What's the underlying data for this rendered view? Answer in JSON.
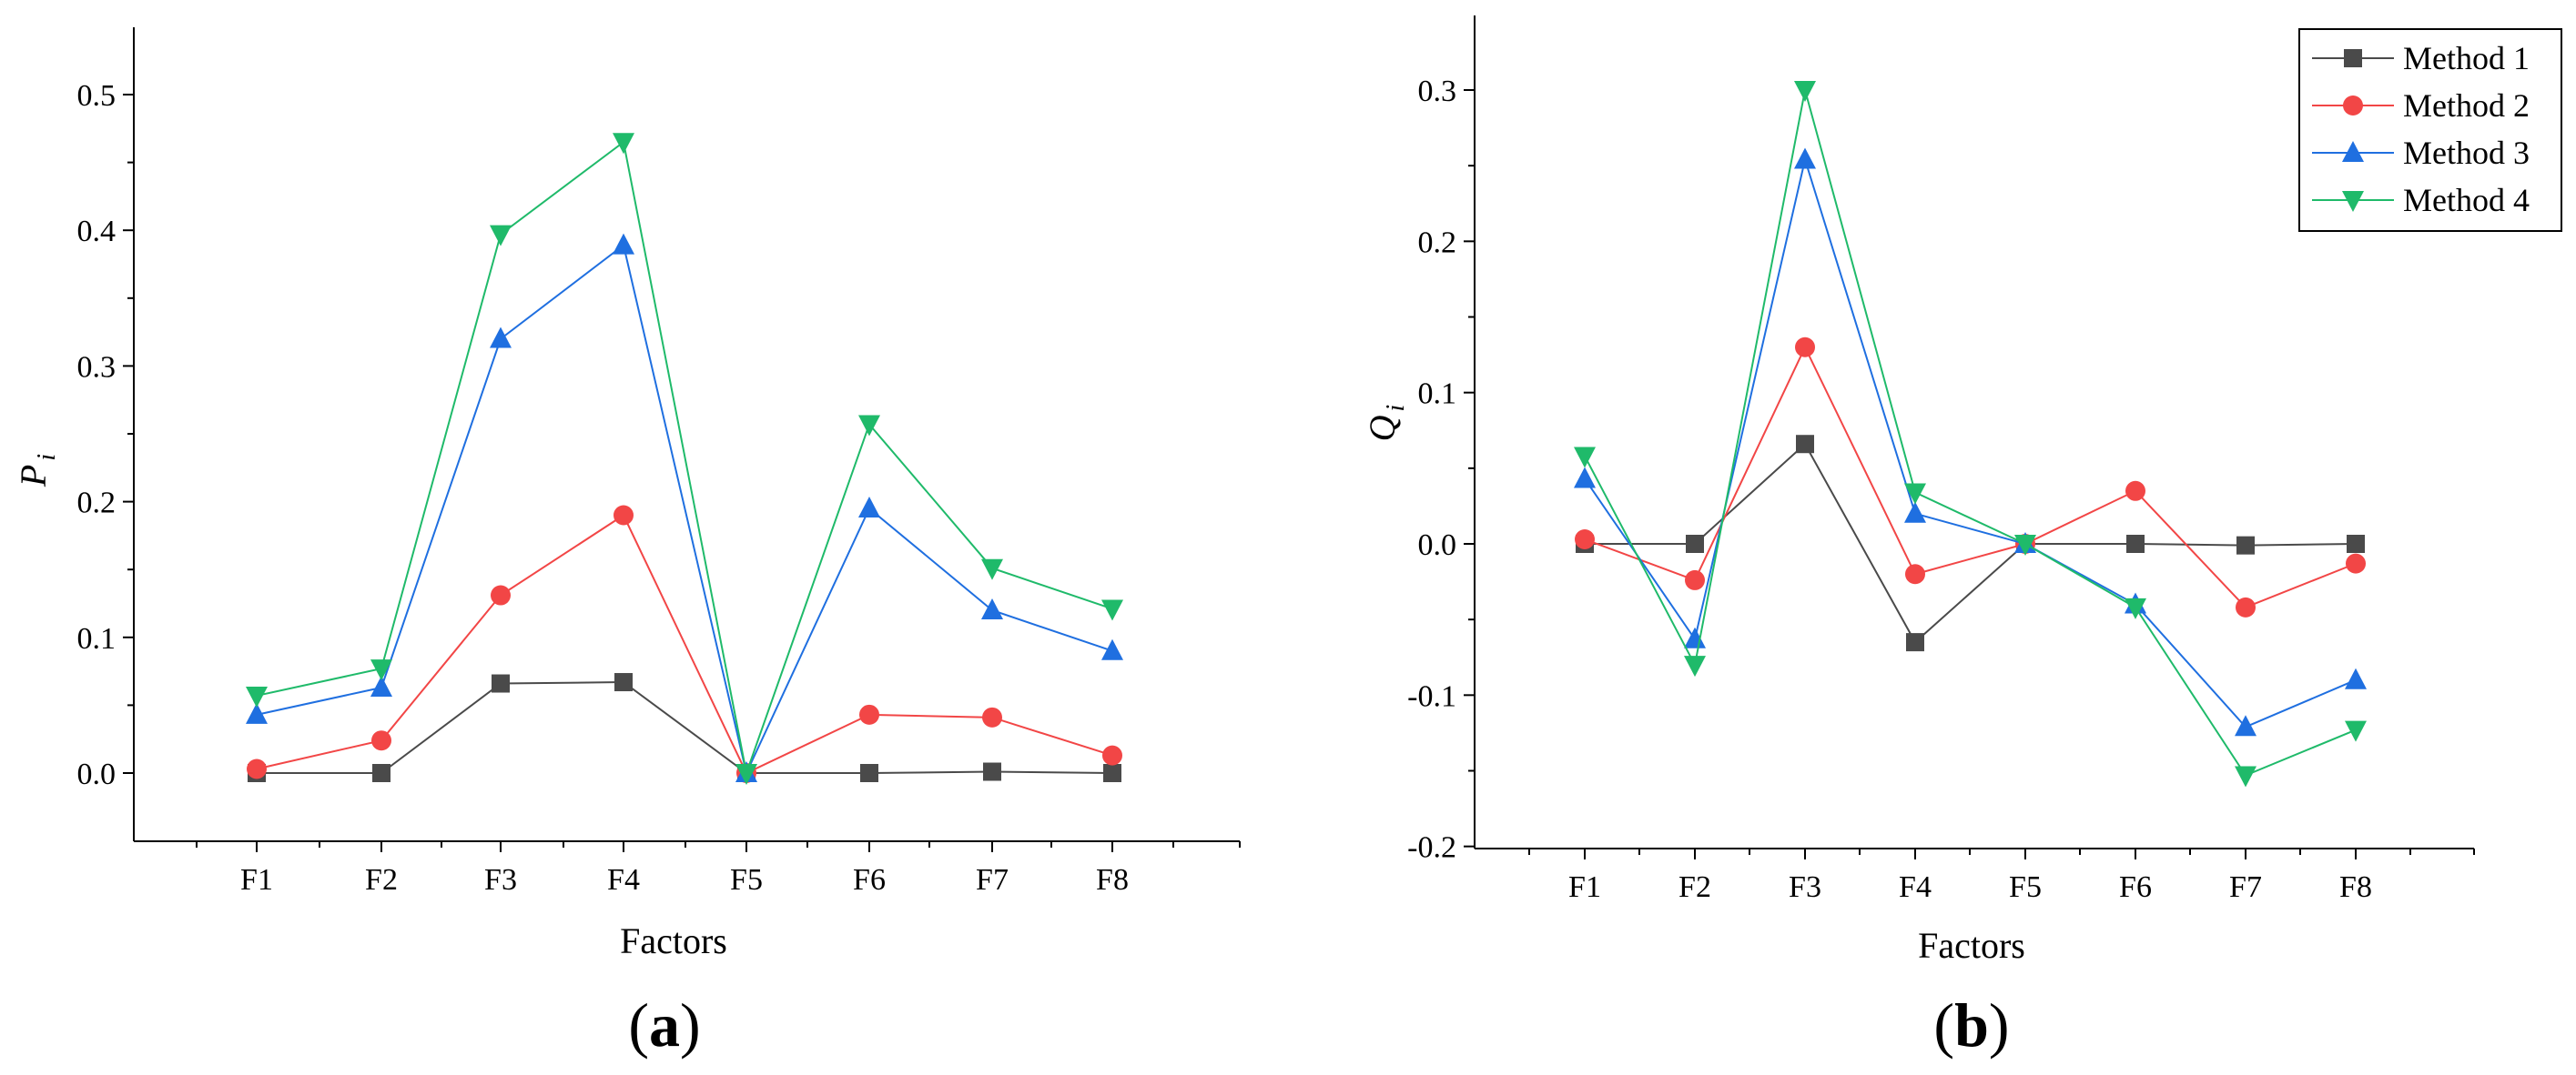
{
  "chart_data": [
    {
      "type": "line",
      "panel_label": "(a)",
      "panel_letter": "a",
      "xlabel": "Factors",
      "ylabel": "P",
      "ylabel_sub": "i",
      "categories": [
        "F1",
        "F2",
        "F3",
        "F4",
        "F5",
        "F6",
        "F7",
        "F8"
      ],
      "ylim": [
        -0.05,
        0.55
      ],
      "yticks": [
        0.0,
        0.1,
        0.2,
        0.3,
        0.4,
        0.5
      ],
      "ytick_labels": [
        "0.0",
        "0.1",
        "0.2",
        "0.3",
        "0.4",
        "0.5"
      ],
      "grid": false,
      "series": [
        {
          "name": "Method 1",
          "values": [
            0.0,
            0.0,
            0.066,
            0.067,
            0.0,
            0.0,
            0.001,
            0.0
          ]
        },
        {
          "name": "Method 2",
          "values": [
            0.003,
            0.024,
            0.131,
            0.19,
            0.0,
            0.043,
            0.041,
            0.013
          ]
        },
        {
          "name": "Method 3",
          "values": [
            0.043,
            0.063,
            0.32,
            0.389,
            0.0,
            0.195,
            0.12,
            0.09
          ]
        },
        {
          "name": "Method 4",
          "values": [
            0.057,
            0.077,
            0.397,
            0.465,
            0.0,
            0.257,
            0.151,
            0.121
          ]
        }
      ]
    },
    {
      "type": "line",
      "panel_label": "(b)",
      "panel_letter": "b",
      "xlabel": "Factors",
      "ylabel": "Q",
      "ylabel_sub": "i",
      "categories": [
        "F1",
        "F2",
        "F3",
        "F4",
        "F5",
        "F6",
        "F7",
        "F8"
      ],
      "ylim": [
        -0.2,
        0.35
      ],
      "yticks": [
        -0.2,
        -0.1,
        0.0,
        0.1,
        0.2,
        0.3
      ],
      "ytick_labels": [
        "-0.2",
        "-0.1",
        "0.0",
        "0.1",
        "0.2",
        "0.3"
      ],
      "grid": false,
      "legend_position": "top-right",
      "series": [
        {
          "name": "Method 1",
          "values": [
            0.0,
            0.0,
            0.066,
            -0.065,
            0.0,
            0.0,
            -0.001,
            0.0
          ]
        },
        {
          "name": "Method 2",
          "values": [
            0.003,
            -0.024,
            0.13,
            -0.02,
            0.0,
            0.035,
            -0.042,
            -0.013
          ]
        },
        {
          "name": "Method 3",
          "values": [
            0.043,
            -0.063,
            0.254,
            0.02,
            0.0,
            -0.04,
            -0.121,
            -0.09
          ]
        },
        {
          "name": "Method 4",
          "values": [
            0.058,
            -0.08,
            0.3,
            0.034,
            0.0,
            -0.042,
            -0.153,
            -0.123
          ]
        }
      ]
    }
  ],
  "styles": {
    "Method 1": {
      "color": "#4a4a4a",
      "marker": "square"
    },
    "Method 2": {
      "color": "#f24646",
      "marker": "circle"
    },
    "Method 3": {
      "color": "#1f6fe0",
      "marker": "triangle-up"
    },
    "Method 4": {
      "color": "#1fba6a",
      "marker": "triangle-down"
    }
  },
  "legend": {
    "entries": [
      "Method 1",
      "Method 2",
      "Method 3",
      "Method 4"
    ]
  }
}
